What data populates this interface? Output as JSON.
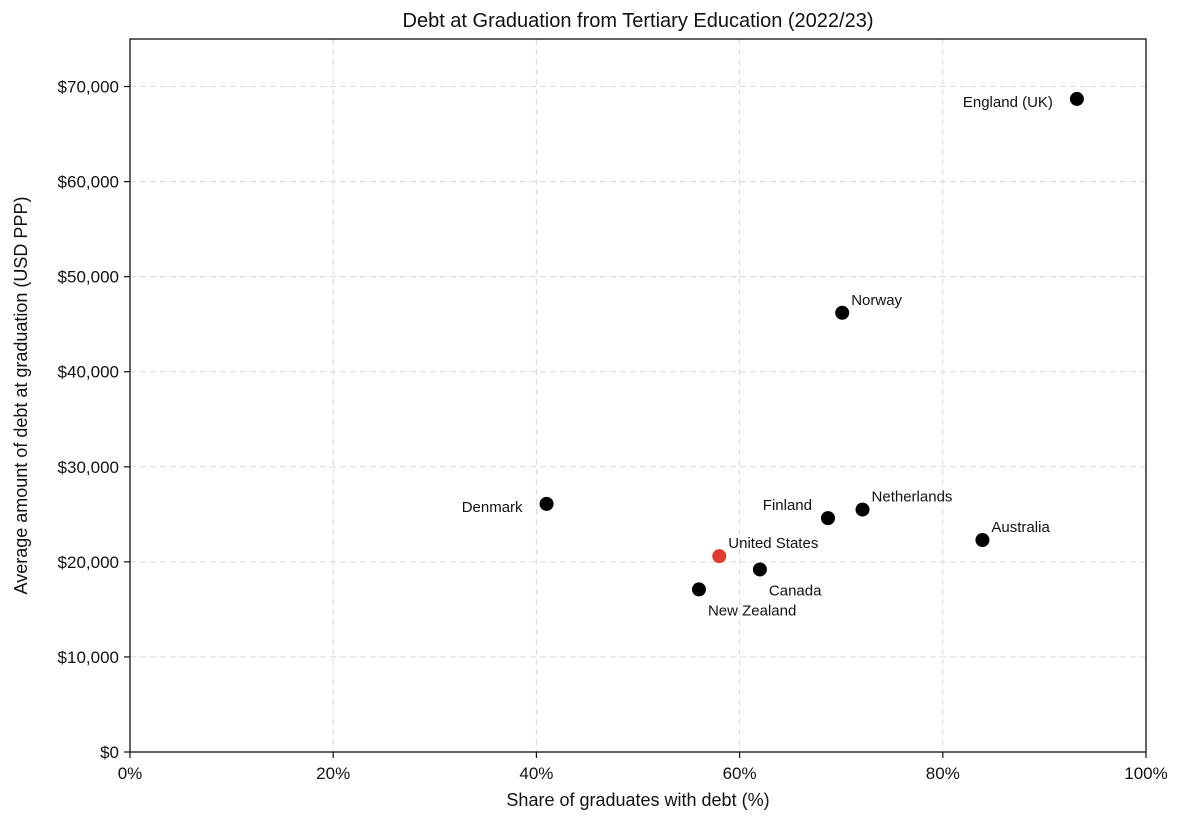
{
  "chart_data": {
    "type": "scatter",
    "title": "Debt at Graduation from Tertiary Education (2022/23)",
    "xlabel": "Share of graduates with debt (%)",
    "ylabel": "Average amount of debt at graduation (USD PPP)",
    "xlim": [
      0,
      100
    ],
    "ylim": [
      0,
      75000
    ],
    "x_ticks": [
      0,
      20,
      40,
      60,
      80,
      100
    ],
    "x_tick_labels": [
      "0%",
      "20%",
      "40%",
      "60%",
      "80%",
      "100%"
    ],
    "y_ticks": [
      0,
      10000,
      20000,
      30000,
      40000,
      50000,
      60000,
      70000
    ],
    "y_tick_labels": [
      "$0",
      "$10,000",
      "$20,000",
      "$30,000",
      "$40,000",
      "$50,000",
      "$60,000",
      "$70,000"
    ],
    "grid": true,
    "legend": "none",
    "point_color": "#000000",
    "highlight_color": "#e03b2f",
    "points": [
      {
        "label": "England (UK)",
        "x": 93.2,
        "y": 68700,
        "highlight": false,
        "label_pos": "left"
      },
      {
        "label": "Norway",
        "x": 70.1,
        "y": 46200,
        "highlight": false,
        "label_pos": "above-right"
      },
      {
        "label": "Denmark",
        "x": 41.0,
        "y": 26100,
        "highlight": false,
        "label_pos": "left"
      },
      {
        "label": "Finland",
        "x": 68.7,
        "y": 24600,
        "highlight": false,
        "label_pos": "above-left"
      },
      {
        "label": "Netherlands",
        "x": 72.1,
        "y": 25500,
        "highlight": false,
        "label_pos": "above-right"
      },
      {
        "label": "Australia",
        "x": 83.9,
        "y": 22300,
        "highlight": false,
        "label_pos": "above-right"
      },
      {
        "label": "United States",
        "x": 58.0,
        "y": 20600,
        "highlight": true,
        "label_pos": "above-right"
      },
      {
        "label": "Canada",
        "x": 62.0,
        "y": 19200,
        "highlight": false,
        "label_pos": "below-right"
      },
      {
        "label": "New Zealand",
        "x": 56.0,
        "y": 17100,
        "highlight": false,
        "label_pos": "below-right"
      }
    ]
  }
}
